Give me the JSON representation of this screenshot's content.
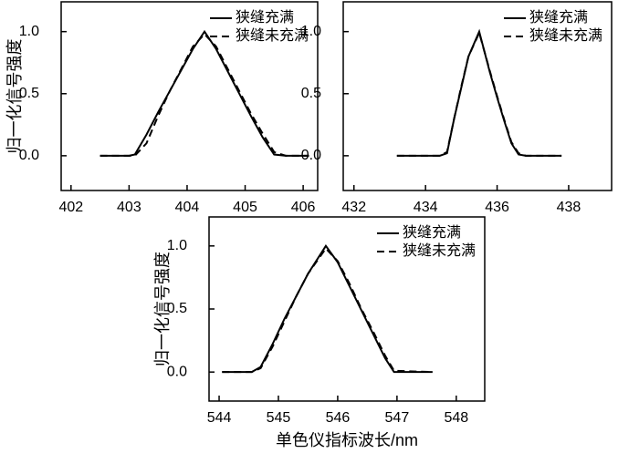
{
  "chart_data": [
    {
      "type": "line",
      "y_label": "归一化信号强度",
      "legend": "upper right",
      "x": [
        402.5,
        403.0,
        403.1,
        403.3,
        403.5,
        403.7,
        403.9,
        404.1,
        404.3,
        404.5,
        404.7,
        404.9,
        405.1,
        405.3,
        405.5,
        405.7,
        406.1
      ],
      "series": [
        {
          "name": "狭缝充满",
          "color": "#000000",
          "dash": "solid",
          "values": [
            0,
            0,
            0.01,
            0.17,
            0.35,
            0.52,
            0.69,
            0.86,
            1.0,
            0.86,
            0.68,
            0.5,
            0.32,
            0.15,
            0.01,
            0,
            0
          ]
        },
        {
          "name": "狭缝未充满",
          "color": "#000000",
          "dash": "dashed",
          "values": [
            0,
            0,
            0,
            0.1,
            0.32,
            0.52,
            0.7,
            0.88,
            0.98,
            0.88,
            0.7,
            0.52,
            0.34,
            0.18,
            0.03,
            0,
            0
          ]
        }
      ],
      "xlim": [
        401.83,
        406.25
      ],
      "xticks": [
        402,
        403,
        404,
        405,
        406
      ],
      "ylim": [
        -0.28,
        1.24
      ],
      "yticks": [
        {
          "value": 0,
          "label": "0.0"
        },
        {
          "value": 0.5,
          "label": "0.5"
        },
        {
          "value": 1,
          "label": "1.0"
        }
      ]
    },
    {
      "type": "line",
      "legend": "upper right",
      "x": [
        433.2,
        434.4,
        434.6,
        434.8,
        435.0,
        435.2,
        435.5,
        435.8,
        436.0,
        436.2,
        436.4,
        436.6,
        436.8,
        437.8
      ],
      "series": [
        {
          "name": "狭缝充满",
          "color": "#000000",
          "dash": "solid",
          "values": [
            0,
            0,
            0.02,
            0.3,
            0.55,
            0.8,
            1.0,
            0.67,
            0.47,
            0.28,
            0.1,
            0.01,
            0,
            0
          ]
        },
        {
          "name": "狭缝未充满",
          "color": "#000000",
          "dash": "dashed",
          "values": [
            0,
            0,
            0.03,
            0.3,
            0.56,
            0.8,
            0.99,
            0.68,
            0.48,
            0.29,
            0.11,
            0.02,
            0,
            0
          ]
        }
      ],
      "xlim": [
        431.7,
        439.2
      ],
      "xticks": [
        432,
        434,
        436,
        438
      ],
      "ylim": [
        -0.28,
        1.24
      ],
      "yticks": [
        {
          "value": 0,
          "label": "0.0"
        },
        {
          "value": 0.5,
          "label": "0.5"
        },
        {
          "value": 1,
          "label": "1.0"
        }
      ]
    },
    {
      "type": "line",
      "y_label": "归一化信号强度",
      "x_label": "单色仪指标波长/nm",
      "legend": "upper right",
      "x": [
        544.05,
        544.55,
        544.7,
        544.9,
        545.1,
        545.3,
        545.5,
        545.8,
        546.0,
        546.2,
        546.4,
        546.6,
        546.8,
        546.95,
        547.6
      ],
      "series": [
        {
          "name": "狭缝充满",
          "color": "#000000",
          "dash": "solid",
          "values": [
            0,
            0,
            0.04,
            0.22,
            0.42,
            0.6,
            0.78,
            1.0,
            0.87,
            0.68,
            0.49,
            0.3,
            0.11,
            0,
            0
          ]
        },
        {
          "name": "狭缝未充满",
          "color": "#000000",
          "dash": "dashed",
          "values": [
            0,
            0,
            0.03,
            0.2,
            0.4,
            0.6,
            0.78,
            0.98,
            0.88,
            0.7,
            0.5,
            0.32,
            0.13,
            0.01,
            0
          ]
        }
      ],
      "xlim": [
        543.83,
        548.48
      ],
      "xticks": [
        544,
        545,
        546,
        547,
        548
      ],
      "ylim": [
        -0.23,
        1.23
      ],
      "yticks": [
        {
          "value": 0,
          "label": "0.0"
        },
        {
          "value": 0.5,
          "label": "0.5"
        },
        {
          "value": 1,
          "label": "1.0"
        }
      ]
    }
  ]
}
